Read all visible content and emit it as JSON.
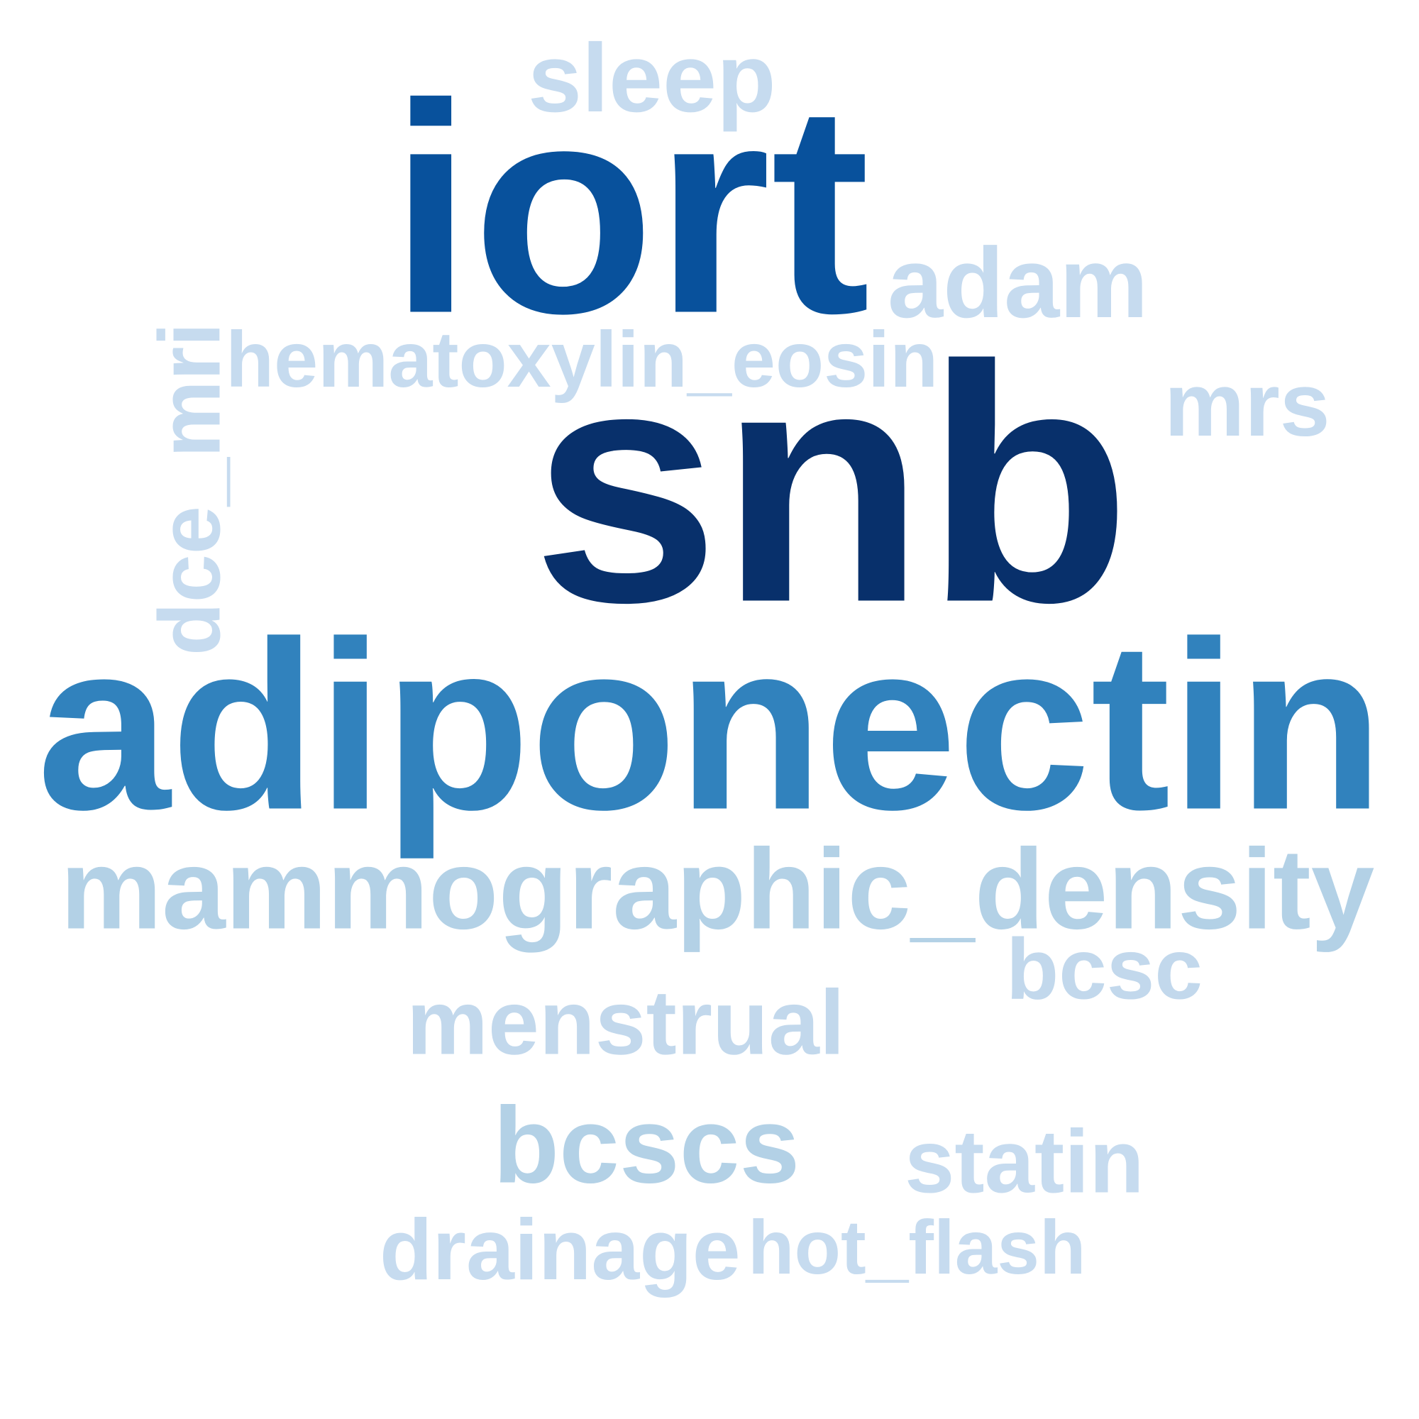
{
  "word_cloud": {
    "words": [
      {
        "text": "snb",
        "color": "#08306b"
      },
      {
        "text": "iort",
        "color": "#08519c"
      },
      {
        "text": "adiponectin",
        "color": "#3182bd"
      },
      {
        "text": "mammographic_density",
        "color": "#b3d1e6"
      },
      {
        "text": "bcscs",
        "color": "#b3d1e6"
      },
      {
        "text": "menstrual",
        "color": "#c2d8ec"
      },
      {
        "text": "bcsc",
        "color": "#c2d8ec"
      },
      {
        "text": "statin",
        "color": "#c6dbef"
      },
      {
        "text": "drainage",
        "color": "#c6dbef"
      },
      {
        "text": "hot_flash",
        "color": "#c6dbef"
      },
      {
        "text": "sleep",
        "color": "#c6dbef"
      },
      {
        "text": "adam",
        "color": "#c6dbef"
      },
      {
        "text": "hematoxylin_eosin",
        "color": "#c6dbef"
      },
      {
        "text": "mrs",
        "color": "#c6dbef"
      },
      {
        "text": "dce_mri",
        "color": "#c6dbef"
      }
    ]
  }
}
